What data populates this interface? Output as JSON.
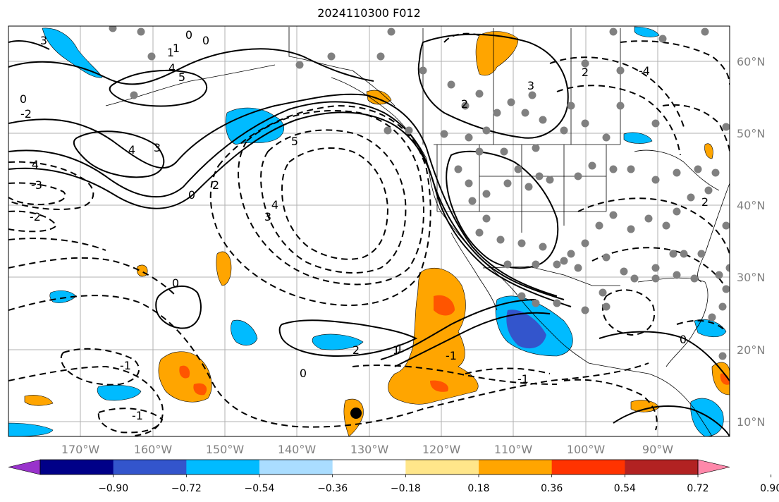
{
  "title": "2024110300 F012",
  "latitude_labels": [
    "60°N",
    "50°N",
    "40°N",
    "30°N",
    "20°N",
    "10°N"
  ],
  "longitude_labels": [
    "170°W",
    "160°W",
    "150°W",
    "140°W",
    "130°W",
    "120°W",
    "110°W",
    "100°W",
    "90°W"
  ],
  "colorbar": {
    "tick_labels": [
      "−0.90",
      "−0.72",
      "−0.54",
      "−0.36",
      "−0.18",
      "0.18",
      "0.36",
      "0.54",
      "0.72",
      "0.90"
    ],
    "colors": [
      "#9933cc",
      "#000088",
      "#3355cc",
      "#00bbff",
      "#aaddff",
      "#ffffff",
      "#ffe68a",
      "#ffa500",
      "#ff3300",
      "#b22222",
      "#ff88aa"
    ]
  },
  "contour_labels": [
    "0",
    "3",
    "0",
    "1",
    "4",
    "5",
    "-2",
    "0",
    "4",
    "3",
    "2",
    "1",
    "-1",
    "5",
    "4",
    "3",
    "-3",
    "-2",
    "-4",
    "2",
    "0",
    "0",
    "1",
    "2",
    "-1",
    "3",
    "2",
    "1",
    "-1",
    "0",
    "-1",
    "0",
    "4",
    "2"
  ],
  "colors": {
    "positive_fill": "#ffa500",
    "strong_positive_fill": "#ff5500",
    "negative_fill": "#00bbff",
    "strong_negative_fill": "#3355cc",
    "dots": "#808080",
    "grid": "#b0b0b0"
  }
}
